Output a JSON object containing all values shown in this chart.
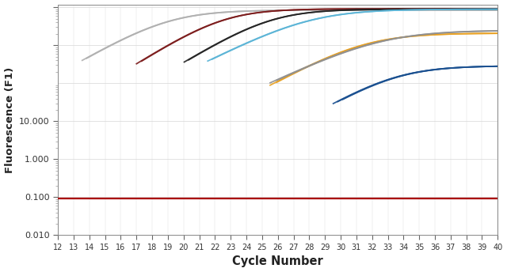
{
  "title": "",
  "xlabel": "Cycle Number",
  "ylabel": "Fluorescence (F1)",
  "xlim": [
    12,
    40
  ],
  "ylim_log": [
    0.01,
    12000
  ],
  "xticks": [
    12,
    13,
    14,
    15,
    16,
    17,
    18,
    19,
    20,
    21,
    22,
    23,
    24,
    25,
    26,
    27,
    28,
    29,
    30,
    31,
    32,
    33,
    34,
    35,
    36,
    37,
    38,
    39,
    40
  ],
  "threshold_y": 0.093,
  "threshold_color": "#aa0000",
  "background_color": "#ffffff",
  "curves": [
    {
      "color": "#b0b0b0",
      "start_cycle": 13.5,
      "baseline": 0.01,
      "midpoint": 19.0,
      "plateau": 8500,
      "k": 0.55,
      "replicates": [
        0.0,
        0.3
      ]
    },
    {
      "color": "#7b1a1a",
      "start_cycle": 17.0,
      "baseline": 0.01,
      "midpoint": 22.5,
      "plateau": 9200,
      "k": 0.6,
      "replicates": [
        0.0,
        0.3
      ]
    },
    {
      "color": "#222222",
      "start_cycle": 20.0,
      "baseline": 0.01,
      "midpoint": 25.5,
      "plateau": 9000,
      "k": 0.58,
      "replicates": [
        0.0,
        0.3
      ]
    },
    {
      "color": "#5ab4d6",
      "start_cycle": 21.5,
      "baseline": 0.01,
      "midpoint": 28.0,
      "plateau": 9000,
      "k": 0.48,
      "replicates": [
        0.0,
        0.3
      ]
    },
    {
      "color": "#e8a020",
      "start_cycle": 25.5,
      "baseline": 0.01,
      "midpoint": 31.5,
      "plateau": 2100,
      "k": 0.52,
      "replicates": [
        0.0,
        0.4
      ]
    },
    {
      "color": "#909090",
      "start_cycle": 25.5,
      "baseline": 0.01,
      "midpoint": 32.5,
      "plateau": 2500,
      "k": 0.45,
      "replicates": [
        0.0,
        0.4
      ]
    },
    {
      "color": "#1a5090",
      "start_cycle": 29.5,
      "baseline": 0.01,
      "midpoint": 33.5,
      "plateau": 290,
      "k": 0.55,
      "replicates": [
        0.0,
        0.3,
        0.6
      ]
    }
  ]
}
